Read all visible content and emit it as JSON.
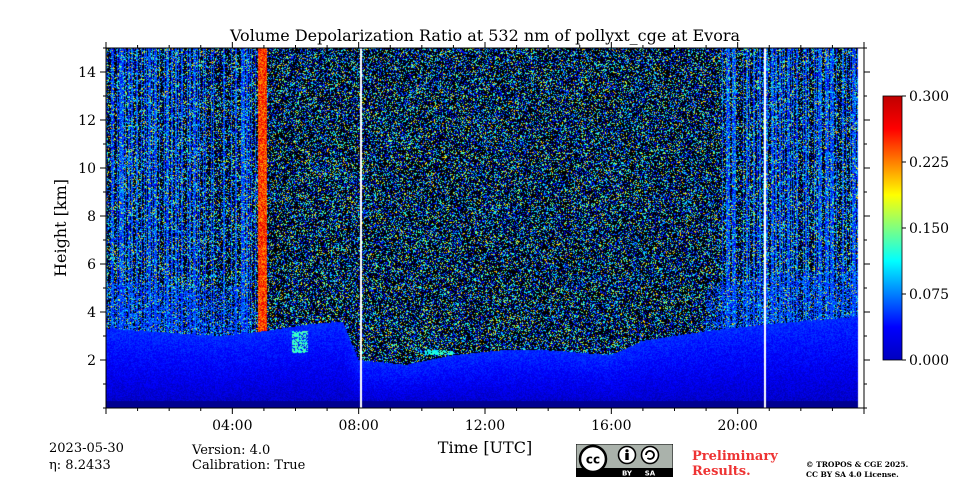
{
  "chart_data": {
    "type": "heatmap",
    "title": "Volume Depolarization Ratio at 532 nm of pollyxt_cge at Evora",
    "xlabel": "Time [UTC]",
    "ylabel": "Height [km]",
    "xlim_hours": [
      0,
      24
    ],
    "ylim_km": [
      0,
      15
    ],
    "x_ticks": [
      {
        "value": 4,
        "label": "04:00"
      },
      {
        "value": 8,
        "label": "08:00"
      },
      {
        "value": 12,
        "label": "12:00"
      },
      {
        "value": 16,
        "label": "16:00"
      },
      {
        "value": 20,
        "label": "20:00"
      }
    ],
    "y_ticks": [
      {
        "value": 2,
        "label": "2"
      },
      {
        "value": 4,
        "label": "4"
      },
      {
        "value": 6,
        "label": "6"
      },
      {
        "value": 8,
        "label": "8"
      },
      {
        "value": 10,
        "label": "10"
      },
      {
        "value": 12,
        "label": "12"
      },
      {
        "value": 14,
        "label": "14"
      }
    ],
    "colorbar": {
      "min": 0.0,
      "max": 0.3,
      "colormap": "jet",
      "ticks": [
        {
          "value": 0.0,
          "label": "0.000"
        },
        {
          "value": 0.075,
          "label": "0.075"
        },
        {
          "value": 0.15,
          "label": "0.150"
        },
        {
          "value": 0.225,
          "label": "0.225"
        },
        {
          "value": 0.3,
          "label": "0.300"
        }
      ]
    },
    "data_end_hour": 23.8,
    "boundary_layer_top_km": [
      [
        0,
        3.3
      ],
      [
        3.6,
        3.0
      ],
      [
        5.0,
        3.2
      ],
      [
        6.5,
        3.5
      ],
      [
        7.5,
        3.6
      ],
      [
        8.0,
        2.0
      ],
      [
        9.5,
        1.8
      ],
      [
        11.0,
        2.2
      ],
      [
        12.5,
        2.4
      ],
      [
        14.0,
        2.4
      ],
      [
        16.0,
        2.2
      ],
      [
        17.0,
        2.8
      ],
      [
        19.0,
        3.2
      ],
      [
        21.0,
        3.5
      ],
      [
        23.8,
        3.8
      ]
    ],
    "high_depol_feature": {
      "time_start_h": 4.8,
      "time_end_h": 5.1,
      "height_bottom_km": 3.0,
      "height_top_km": 15.0,
      "value": 0.28
    },
    "low_level_features": [
      {
        "time_start_h": 5.9,
        "time_end_h": 6.4,
        "height_bottom_km": 2.3,
        "height_top_km": 3.2,
        "value": 0.13
      },
      {
        "time_start_h": 10.1,
        "time_end_h": 11.0,
        "height_bottom_km": 2.2,
        "height_top_km": 2.4,
        "value": 0.12
      }
    ],
    "data_gaps_h": [
      8.08,
      20.87
    ]
  },
  "footer": {
    "date": "2023-05-30",
    "eta": "η: 8.2433",
    "version": "Version: 4.0",
    "calibration": "Calibration: True",
    "preliminary_line1": "Preliminary",
    "preliminary_line2": "Results.",
    "copyright_line1": "© TROPOS & CGE 2025.",
    "copyright_line2": "CC BY SA 4.0 License.",
    "badge": {
      "cc": "cc",
      "by": "BY",
      "sa": "SA"
    }
  },
  "colors": {
    "background": "#ffffff",
    "noise_dark": "#000000",
    "noise_blue": "#1a2f9a",
    "aerosol_blue": "#1a5fe0",
    "preliminary": "#ee3333"
  }
}
